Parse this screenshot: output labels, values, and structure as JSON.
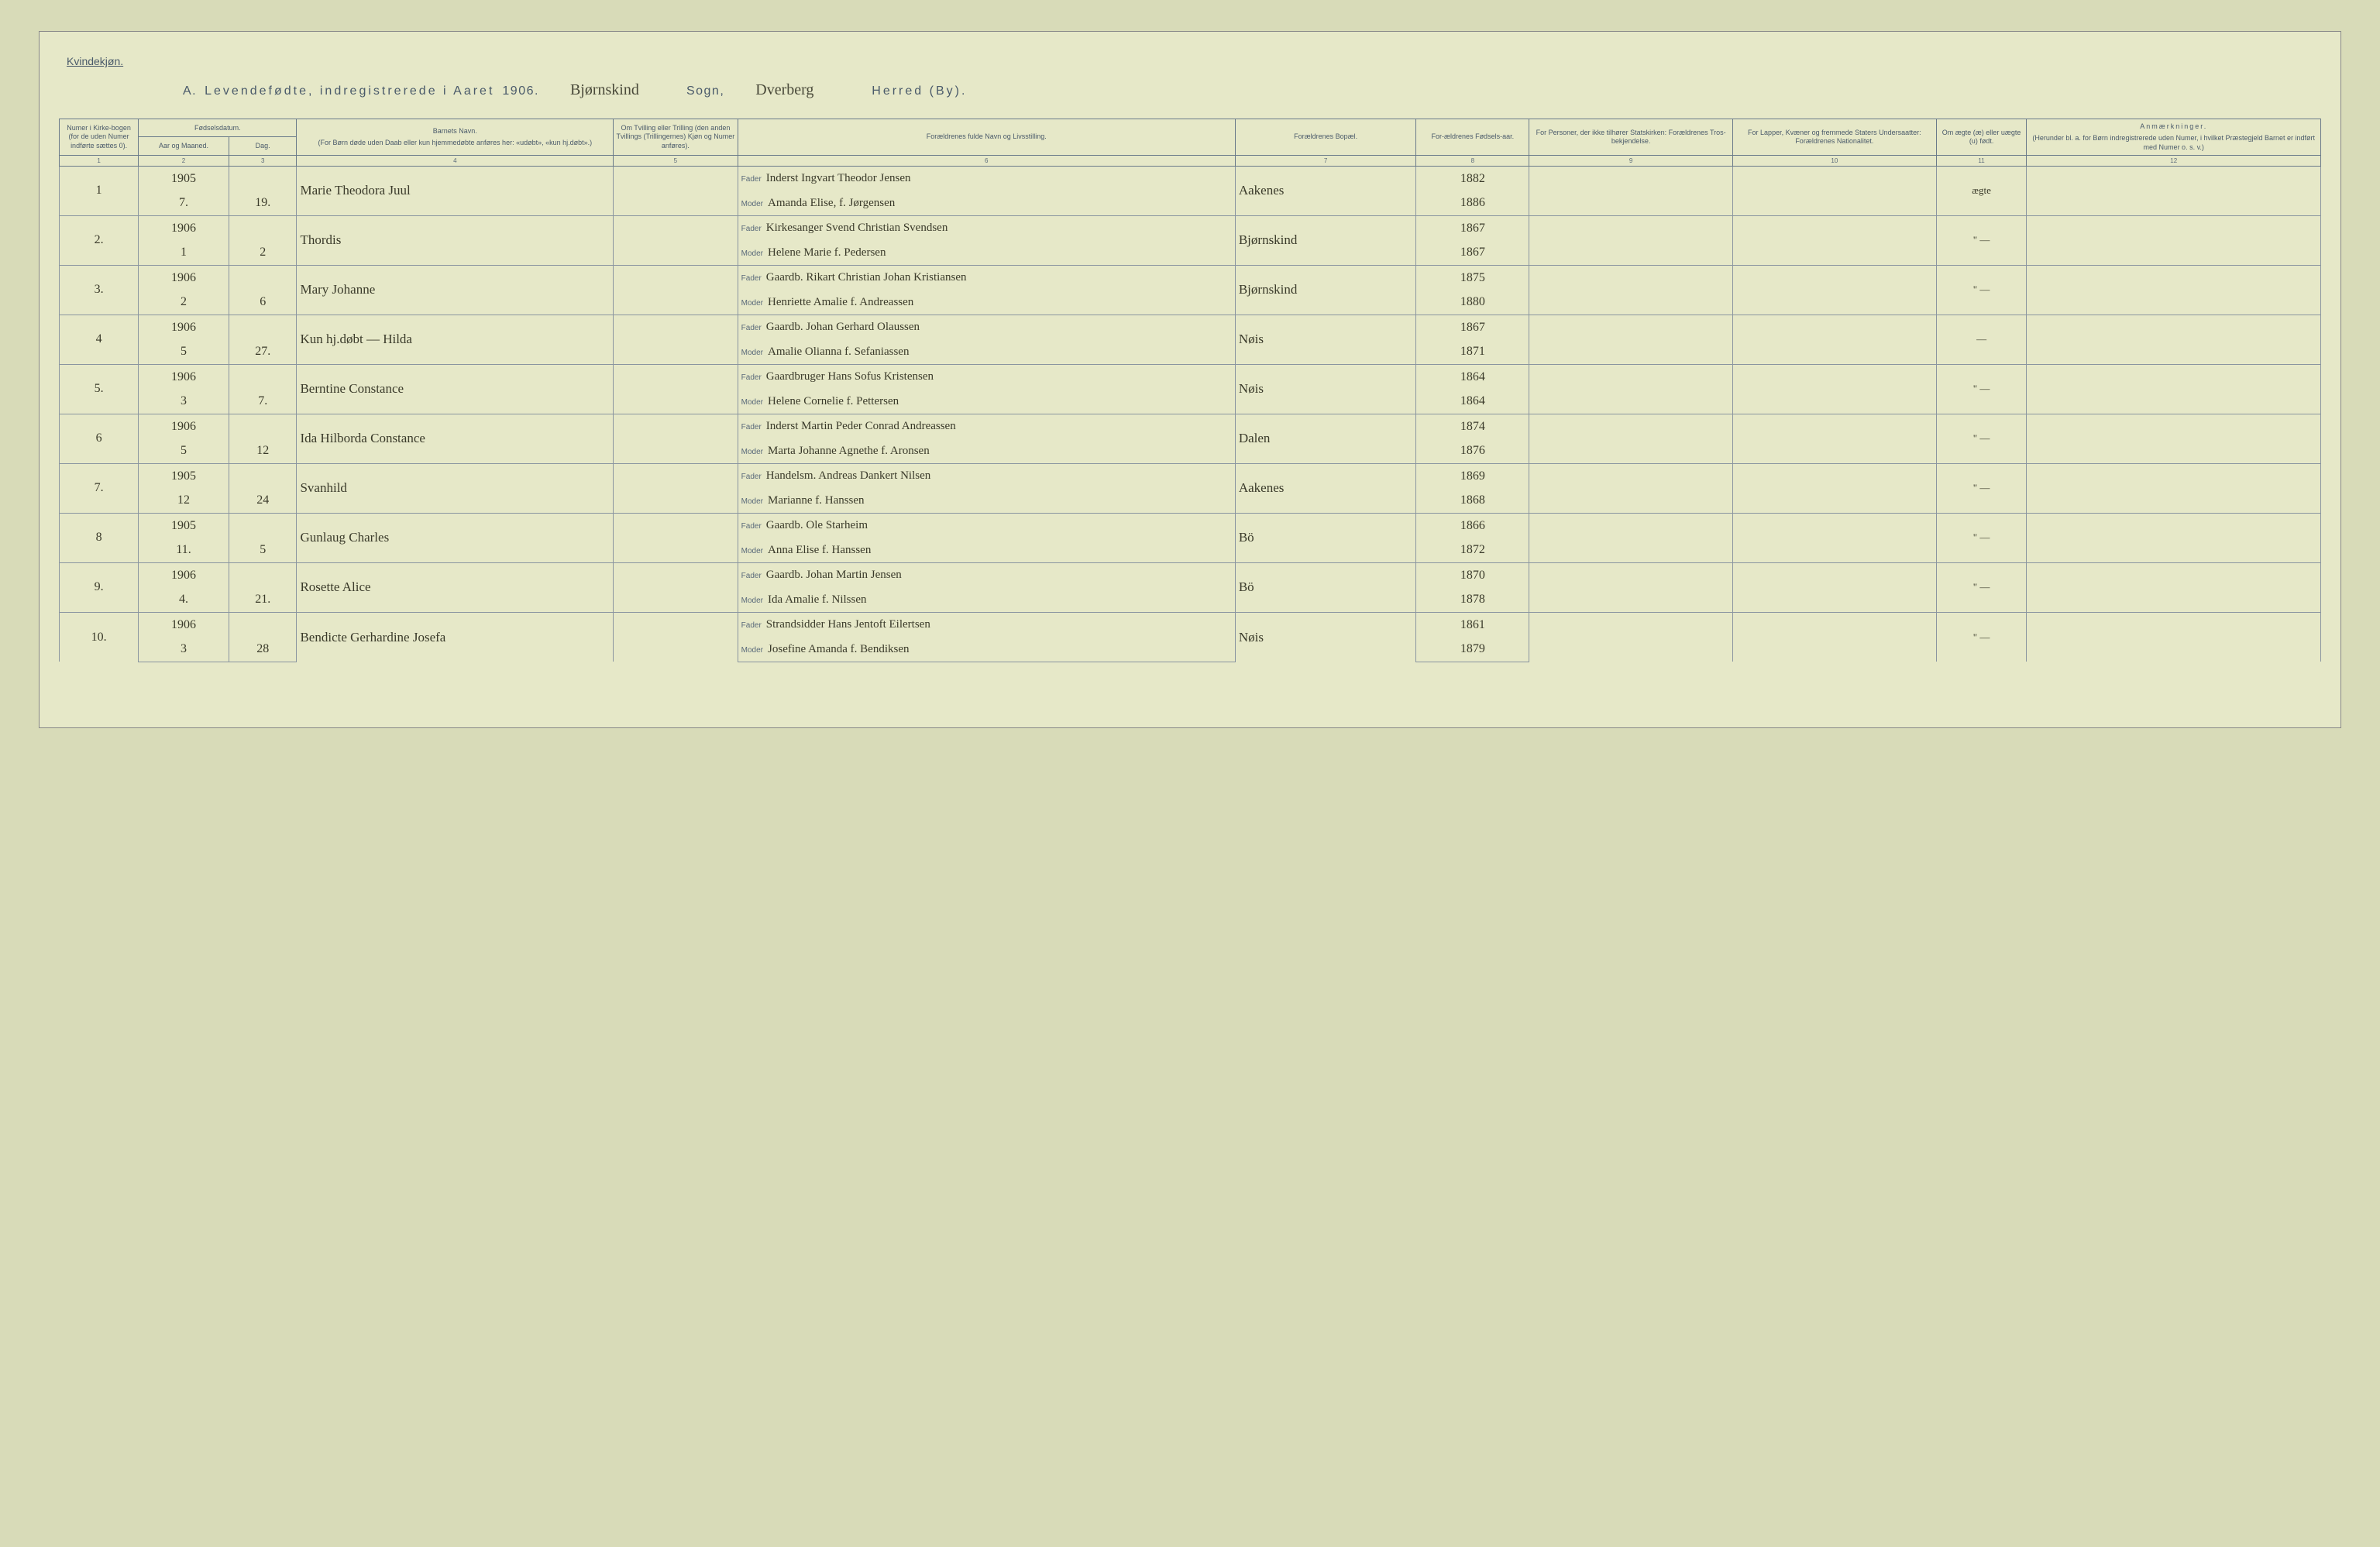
{
  "colors": {
    "page_bg": "#e6e8c8",
    "ink": "#3a3a2a",
    "print": "#4a5a6a",
    "rule": "#8a95a0"
  },
  "topLabel": "Kvindekjøn.",
  "title": {
    "prefix": "A.",
    "main": "Levendefødte, indregistrerede i Aaret",
    "year": "1906",
    "sogn_hand": "Bjørnskind",
    "sogn_label": "Sogn,",
    "herred_hand": "Dverberg",
    "herred_label": "Herred (By)."
  },
  "headers": {
    "h1": "Numer i Kirke-bogen (for de uden Numer indførte sættes 0).",
    "h2": "Fødselsdatum.",
    "h2a": "Aar og Maaned.",
    "h2b": "Dag.",
    "h3": "Barnets Navn.",
    "h3_sub": "(For Børn døde uden Daab eller kun hjemmedøbte anføres her: «udøbt», «kun hj.døbt».)",
    "h4": "Om Tvilling eller Trilling (den anden Tvillings (Trillingernes) Kjøn og Numer anføres).",
    "h5": "Forældrenes fulde Navn og Livsstilling.",
    "h6": "Forældrenes Bopæl.",
    "h7": "For-ældrenes Fødsels-aar.",
    "h8": "For Personer, der ikke tilhører Statskirken: Forældrenes Tros-bekjendelse.",
    "h9": "For Lapper, Kvæner og fremmede Staters Undersaatter: Forældrenes Nationalitet.",
    "h10": "Om ægte (æ) eller uægte (u) født.",
    "h11": "Anmærkninger.",
    "h11_sub": "(Herunder bl. a. for Børn indregistrerede uden Numer, i hvilket Præstegjeld Barnet er indført med Numer o. s. v.)",
    "fader": "Fader",
    "moder": "Moder"
  },
  "colnums": [
    "1",
    "2",
    "3",
    "4",
    "5",
    "6",
    "7",
    "8",
    "9",
    "10",
    "11",
    "12"
  ],
  "rows": [
    {
      "n": "1",
      "year": "1905",
      "month": "7.",
      "day": "19.",
      "name": "Marie Theodora Juul",
      "twin": "",
      "father": "Inderst Ingvart Theodor Jensen",
      "mother": "Amanda Elise, f. Jørgensen",
      "place": "Aakenes",
      "fy": "1882",
      "my": "1886",
      "legit": "ægte",
      "note": ""
    },
    {
      "n": "2.",
      "year": "1906",
      "month": "1",
      "day": "2",
      "name": "Thordis",
      "twin": "",
      "father": "Kirkesanger Svend Christian Svendsen",
      "mother": "Helene Marie f. Pedersen",
      "place": "Bjørnskind",
      "fy": "1867",
      "my": "1867",
      "legit": "\" —",
      "note": ""
    },
    {
      "n": "3.",
      "year": "1906",
      "month": "2",
      "day": "6",
      "name": "Mary Johanne",
      "twin": "",
      "father": "Gaardb. Rikart Christian Johan Kristiansen",
      "mother": "Henriette Amalie f. Andreassen",
      "place": "Bjørnskind",
      "fy": "1875",
      "my": "1880",
      "legit": "\" —",
      "note": ""
    },
    {
      "n": "4",
      "year": "1906",
      "month": "5",
      "day": "27.",
      "name": "Kun hj.døbt — Hilda",
      "twin": "",
      "father": "Gaardb. Johan Gerhard Olaussen",
      "mother": "Amalie Olianna f. Sefaniassen",
      "place": "Nøis",
      "fy": "1867",
      "my": "1871",
      "legit": "—",
      "note": ""
    },
    {
      "n": "5.",
      "year": "1906",
      "month": "3",
      "day": "7.",
      "name": "Berntine Constance",
      "twin": "",
      "father": "Gaardbruger Hans Sofus Kristensen",
      "mother": "Helene Cornelie f. Pettersen",
      "place": "Nøis",
      "fy": "1864",
      "my": "1864",
      "legit": "\" —",
      "note": ""
    },
    {
      "n": "6",
      "year": "1906",
      "month": "5",
      "day": "12",
      "name": "Ida Hilborda Constance",
      "twin": "",
      "father": "Inderst Martin Peder Conrad Andreassen",
      "mother": "Marta Johanne Agnethe f. Aronsen",
      "place": "Dalen",
      "fy": "1874",
      "my": "1876",
      "legit": "\" —",
      "note": ""
    },
    {
      "n": "7.",
      "year": "1905",
      "month": "12",
      "day": "24",
      "name": "Svanhild",
      "twin": "",
      "father": "Handelsm. Andreas Dankert Nilsen",
      "mother": "Marianne f. Hanssen",
      "place": "Aakenes",
      "fy": "1869",
      "my": "1868",
      "legit": "\" —",
      "note": ""
    },
    {
      "n": "8",
      "year": "1905",
      "month": "11.",
      "day": "5",
      "name": "Gunlaug Charles",
      "twin": "",
      "father": "Gaardb. Ole Starheim",
      "mother": "Anna Elise f. Hanssen",
      "place": "Bö",
      "fy": "1866",
      "my": "1872",
      "legit": "\" —",
      "note": ""
    },
    {
      "n": "9.",
      "year": "1906",
      "month": "4.",
      "day": "21.",
      "name": "Rosette Alice",
      "twin": "",
      "father": "Gaardb. Johan Martin Jensen",
      "mother": "Ida Amalie f. Nilssen",
      "place": "Bö",
      "fy": "1870",
      "my": "1878",
      "legit": "\" —",
      "note": ""
    },
    {
      "n": "10.",
      "year": "1906",
      "month": "3",
      "day": "28",
      "name": "Bendicte Gerhardine Josefa",
      "twin": "",
      "father": "Strandsidder Hans Jentoft Eilertsen",
      "mother": "Josefine Amanda f. Bendiksen",
      "place": "Nøis",
      "fy": "1861",
      "my": "1879",
      "legit": "\" —",
      "note": ""
    }
  ]
}
